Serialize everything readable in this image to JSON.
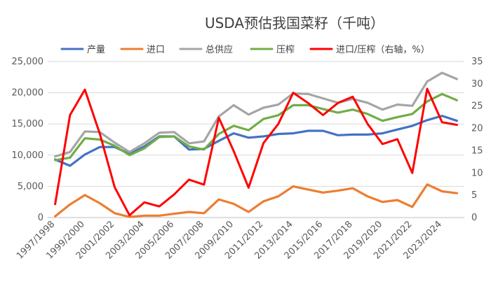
{
  "chart_data": {
    "type": "line",
    "title": "USDA预估我国菜籽（千吨）",
    "x": [
      "1997/1998",
      "1998/1999",
      "1999/2000",
      "2000/2001",
      "2001/2002",
      "2002/2003",
      "2003/2004",
      "2004/2005",
      "2005/2006",
      "2006/2007",
      "2007/2008",
      "2008/2009",
      "2009/2010",
      "2010/2011",
      "2011/2012",
      "2012/2013",
      "2013/2014",
      "2014/2015",
      "2015/2016",
      "2016/2017",
      "2017/2018",
      "2018/2019",
      "2019/2020",
      "2020/2021",
      "2021/2022",
      "2022/2023",
      "2023/2024",
      "2024/2025"
    ],
    "x_tick_labels": [
      "1997/1998",
      "1999/2000",
      "2001/2002",
      "2003/2004",
      "2005/2006",
      "2007/2008",
      "2009/2010",
      "2011/2012",
      "2013/2014",
      "2015/2016",
      "2017/2018",
      "2019/2020",
      "2021/2022",
      "2023/2024"
    ],
    "y_left_ticks": [
      "0",
      "5,000",
      "10,000",
      "15,000",
      "20,000",
      "25,000"
    ],
    "y_right_ticks": [
      "0",
      "5",
      "10",
      "15",
      "20",
      "25",
      "30",
      "35"
    ],
    "ylim_left": [
      0,
      25000
    ],
    "ylim_right": [
      0,
      35
    ],
    "grid": "horizontal",
    "legend_position": "top",
    "series": [
      {
        "name": "产量",
        "axis": "left",
        "color": "#4472C4",
        "values": [
          9300,
          8300,
          10100,
          11300,
          11300,
          10200,
          11400,
          13000,
          13000,
          10900,
          11000,
          12300,
          13500,
          12800,
          13000,
          13400,
          13500,
          13900,
          13900,
          13200,
          13300,
          13300,
          13500,
          14100,
          14700,
          15600,
          16300,
          15500
        ]
      },
      {
        "name": "进口",
        "axis": "left",
        "color": "#ED7D31",
        "values": [
          200,
          2100,
          3600,
          2300,
          700,
          100,
          300,
          300,
          600,
          900,
          700,
          2900,
          2200,
          900,
          2600,
          3400,
          5000,
          4500,
          4000,
          4300,
          4700,
          3400,
          2500,
          2800,
          1700,
          5300,
          4200,
          3900
        ]
      },
      {
        "name": "总供应",
        "axis": "left",
        "color": "#A5A5A5",
        "values": [
          9800,
          10500,
          13800,
          13700,
          12000,
          10500,
          11900,
          13600,
          13700,
          11900,
          12200,
          16200,
          18000,
          16500,
          17600,
          18100,
          19900,
          19800,
          19100,
          18400,
          19000,
          18400,
          17300,
          18100,
          17900,
          21800,
          23200,
          22200
        ]
      },
      {
        "name": "压榨",
        "axis": "left",
        "color": "#70AD47",
        "values": [
          9200,
          9600,
          12700,
          12500,
          11500,
          10000,
          11100,
          12900,
          13000,
          11400,
          10900,
          13400,
          14700,
          14000,
          15800,
          16400,
          18000,
          18000,
          17400,
          16800,
          17300,
          16600,
          15500,
          16100,
          16600,
          18600,
          19800,
          18800
        ]
      },
      {
        "name": "进口/压榨（右轴，%）",
        "axis": "right",
        "color": "#FF0000",
        "values": [
          3.0,
          23.0,
          28.7,
          18.8,
          6.8,
          0.5,
          3.4,
          2.5,
          5.2,
          8.5,
          7.4,
          22.4,
          14.9,
          6.7,
          16.7,
          21.0,
          28.0,
          25.7,
          23.0,
          25.7,
          27.1,
          21.0,
          16.5,
          17.6,
          10.0,
          28.9,
          21.4,
          20.8
        ]
      }
    ]
  }
}
